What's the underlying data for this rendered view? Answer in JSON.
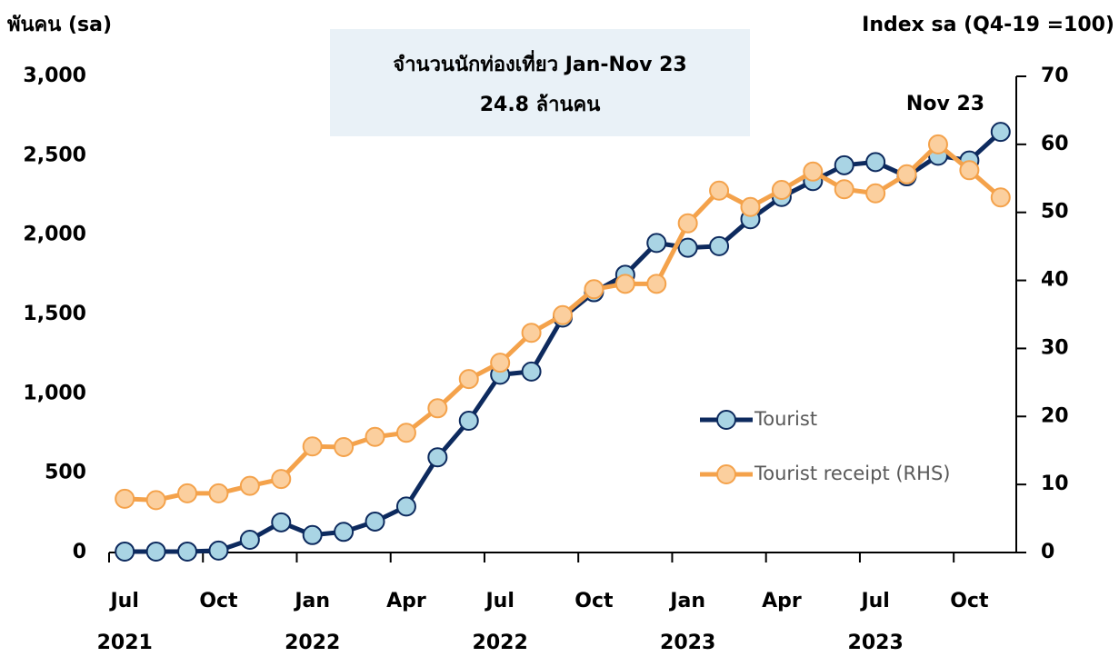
{
  "chart_data": {
    "type": "line",
    "title": "จำนวนนักท่องเที่ยว Jan-Nov 23",
    "subtitle": "24.8 ล้านคน",
    "annotation": "Nov 23",
    "y_label": "พันคน (sa)",
    "y2_label": "Index sa (Q4-19 =100)",
    "categories": [
      "Jul",
      null,
      null,
      "Oct",
      null,
      null,
      "Jan",
      null,
      null,
      "Apr",
      null,
      null,
      "Jul",
      null,
      null,
      "Oct",
      null,
      null,
      "Jan",
      null,
      null,
      "Apr",
      null,
      null,
      "Jul",
      null,
      null,
      "Oct",
      null
    ],
    "category_years": [
      "2021",
      null,
      null,
      null,
      null,
      null,
      "2022",
      null,
      null,
      null,
      null,
      null,
      "2022",
      null,
      null,
      null,
      null,
      null,
      "2023",
      null,
      null,
      null,
      null,
      null,
      "2023",
      null,
      null,
      null,
      null
    ],
    "series": [
      {
        "name": "Tourist",
        "color": "#0d2a5e",
        "marker_color": "#a9d4e4",
        "values": [
          6,
          6,
          6,
          12,
          80,
          190,
          110,
          130,
          195,
          290,
          600,
          830,
          1120,
          1140,
          1480,
          1640,
          1750,
          1950,
          1920,
          1930,
          2100,
          2240,
          2340,
          2440,
          2460,
          2370,
          2500,
          2470,
          2650
        ]
      },
      {
        "name": "Tourist receipt (RHS)",
        "color": "#f4a24b",
        "marker_color": "#fbcf9e",
        "axis": "y2",
        "values": [
          7.9,
          7.7,
          8.7,
          8.7,
          9.8,
          10.8,
          15.6,
          15.5,
          17.0,
          17.6,
          21.2,
          25.5,
          27.9,
          32.3,
          34.9,
          38.7,
          39.5,
          39.5,
          48.4,
          53.2,
          50.8,
          53.3,
          56.0,
          53.4,
          52.8,
          55.6,
          60.0,
          56.2,
          52.2
        ]
      }
    ],
    "ylim": [
      0,
      3000
    ],
    "yticks": [
      0,
      500,
      {
        "value": 1000,
        "label": "1,000"
      },
      {
        "value": 1500,
        "label": "1,500"
      },
      {
        "value": 2000,
        "label": "2,000"
      },
      {
        "value": 2500,
        "label": "2,500"
      },
      {
        "value": 3000,
        "label": "3,000"
      }
    ],
    "y2lim": [
      0,
      70
    ],
    "y2ticks": [
      0,
      10,
      20,
      30,
      40,
      50,
      60,
      70
    ],
    "grid": false,
    "legend": "lower right"
  }
}
